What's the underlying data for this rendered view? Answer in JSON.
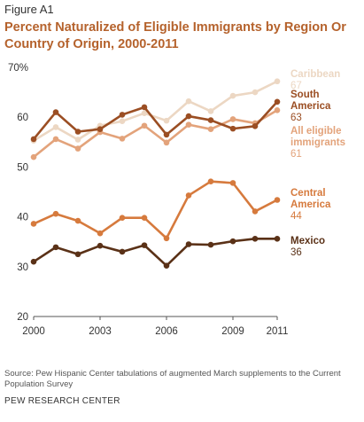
{
  "figure_label": "Figure A1",
  "title": "Percent Naturalized of Eligible Immigrants by Region Or Country of Origin, 2000-2011",
  "source": "Source: Pew Hispanic Center tabulations of augmented March supplements to the Current Population Survey",
  "org": "PEW RESEARCH CENTER",
  "chart_data": {
    "type": "line",
    "x": [
      2000,
      2001,
      2002,
      2003,
      2004,
      2005,
      2006,
      2007,
      2008,
      2009,
      2010,
      2011
    ],
    "xticks": [
      "2000",
      "2003",
      "2006",
      "2009",
      "2011"
    ],
    "yticks": [
      "70%",
      "60",
      "50",
      "40",
      "30",
      "20"
    ],
    "ylim": [
      20,
      70
    ],
    "grid": false,
    "series": [
      {
        "name": "Caribbean",
        "end_label": "67",
        "color": "#ecd7c3",
        "values": [
          55.3,
          58.0,
          55.5,
          58.3,
          59.2,
          60.8,
          59.3,
          63.2,
          61.2,
          64.3,
          65.0,
          67.2
        ]
      },
      {
        "name": "All eligible immigrants",
        "end_label": "61",
        "color": "#e3a37b",
        "values": [
          52.0,
          55.6,
          53.7,
          57.0,
          55.7,
          58.3,
          54.9,
          58.5,
          57.6,
          59.6,
          58.8,
          61.4
        ]
      },
      {
        "name": "South America",
        "end_label": "63",
        "color": "#9b4e23",
        "values": [
          55.6,
          61.0,
          57.1,
          57.6,
          60.5,
          62.0,
          56.5,
          60.2,
          59.4,
          57.7,
          58.2,
          63.1
        ]
      },
      {
        "name": "Central America",
        "end_label": "44",
        "color": "#d67a3d",
        "values": [
          38.6,
          40.6,
          39.2,
          36.7,
          39.8,
          39.8,
          35.7,
          44.3,
          47.1,
          46.8,
          41.1,
          43.4
        ]
      },
      {
        "name": "Mexico",
        "end_label": "36",
        "color": "#5a3117",
        "values": [
          31.0,
          33.9,
          32.5,
          34.2,
          33.0,
          34.3,
          30.2,
          34.5,
          34.4,
          35.1,
          35.6,
          35.6
        ]
      }
    ]
  }
}
